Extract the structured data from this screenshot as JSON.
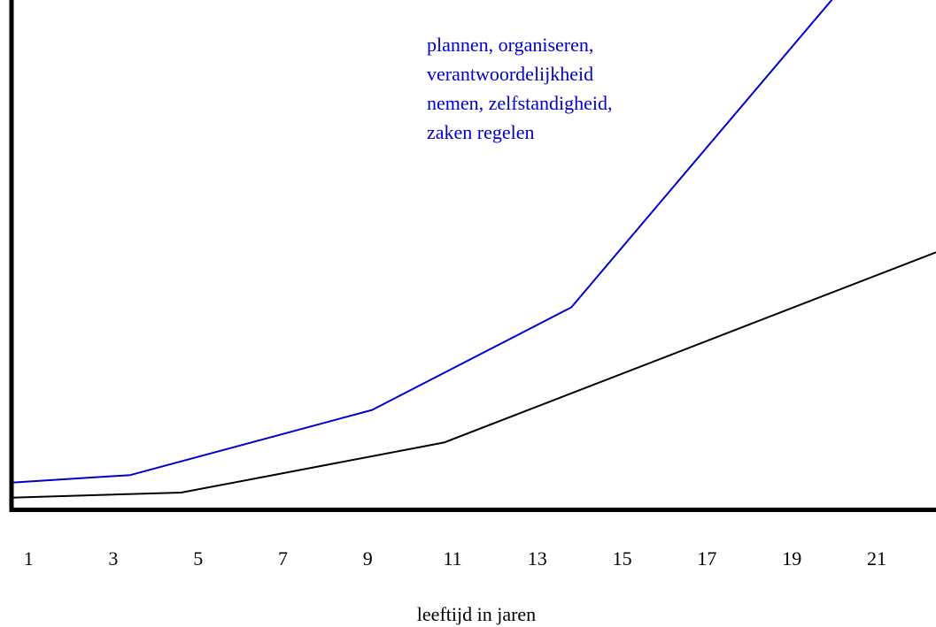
{
  "chart_data": {
    "type": "line",
    "title": "",
    "xlabel": "leeftijd in jaren",
    "ylabel": "",
    "x_ticks": [
      1,
      3,
      5,
      7,
      9,
      11,
      13,
      15,
      17,
      19,
      21
    ],
    "xlim": [
      0.6,
      22.4
    ],
    "ylim": [
      0,
      100
    ],
    "grid": false,
    "legend": "none",
    "series": [
      {
        "color": "#0000cc",
        "x": [
          0.6,
          3.4,
          9.1,
          13.8,
          20.3
        ],
        "y": [
          5,
          6.5,
          19.5,
          40,
          105
        ]
      },
      {
        "color": "#000000",
        "x": [
          0.6,
          4.6,
          10.8,
          22.4
        ],
        "y": [
          2,
          3,
          13,
          51
        ]
      }
    ],
    "annotations": [
      {
        "lines": [
          "plannen, organiseren,",
          "verantwoordelijkheid",
          "nemen, zelfstandigheid,",
          "zaken regelen"
        ],
        "color": "#0000cc"
      }
    ]
  }
}
